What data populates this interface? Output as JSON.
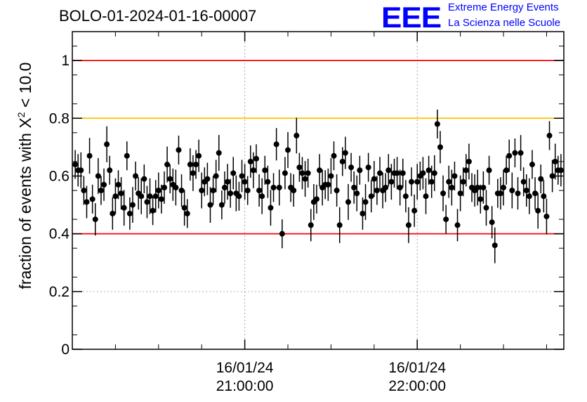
{
  "header": {
    "title": "BOLO-01-2024-01-16-00007",
    "logo": {
      "mark": "EEE",
      "line1": "Extreme Energy Events",
      "line2": "La Scienza nelle Scuole",
      "color": "#0000ff"
    }
  },
  "chart_data": {
    "type": "scatter",
    "title": "BOLO-01-2024-01-16-00007",
    "ylabel_prefix": "fraction of events with X",
    "ylabel_sup": "2",
    "ylabel_suffix": " < 10.0",
    "ylim": [
      0,
      1.1
    ],
    "yticks": [
      0,
      0.2,
      0.4,
      0.6,
      0.8,
      1
    ],
    "ytick_labels": [
      "0",
      "0.2",
      "0.4",
      "0.6",
      "0.8",
      "1"
    ],
    "xlim_minutes": [
      1140,
      1311
    ],
    "xticks": [
      {
        "minute": 1200,
        "line1": "16/01/24",
        "line2": "21:00:00"
      },
      {
        "minute": 1260,
        "line1": "16/01/24",
        "line2": "22:00:00"
      }
    ],
    "xminor_minutes": [
      1155,
      1170,
      1185,
      1215,
      1230,
      1245,
      1275,
      1290,
      1305
    ],
    "grid": "dotted at labeled ticks",
    "reference_lines": [
      {
        "value": 1.0,
        "color": "#ff0000"
      },
      {
        "value": 0.8,
        "color": "#ffbf00"
      },
      {
        "value": 0.4,
        "color": "#ff0000"
      },
      {
        "value": 0.2,
        "color": "#b0b0b0",
        "style": "dotted"
      }
    ],
    "series": [
      {
        "marker_color": "#000000",
        "step_minutes": 1,
        "start_minute": 1141,
        "error": 0.05,
        "y": [
          0.64,
          0.62,
          0.62,
          0.55,
          0.51,
          0.67,
          0.52,
          0.45,
          0.6,
          0.55,
          0.57,
          0.71,
          0.62,
          0.47,
          0.53,
          0.57,
          0.54,
          0.49,
          0.67,
          0.47,
          0.5,
          0.6,
          0.54,
          0.53,
          0.59,
          0.51,
          0.53,
          0.48,
          0.53,
          0.55,
          0.52,
          0.56,
          0.64,
          0.59,
          0.57,
          0.56,
          0.69,
          0.55,
          0.49,
          0.47,
          0.64,
          0.61,
          0.64,
          0.67,
          0.55,
          0.58,
          0.59,
          0.5,
          0.55,
          0.6,
          0.68,
          0.5,
          0.56,
          0.58,
          0.54,
          0.61,
          0.54,
          0.53,
          0.6,
          0.58,
          0.55,
          0.65,
          0.62,
          0.66,
          0.55,
          0.53,
          0.62,
          0.58,
          0.49,
          0.56,
          0.71,
          0.56,
          0.4,
          0.61,
          0.69,
          0.56,
          0.55,
          0.74,
          0.63,
          0.61,
          0.59,
          0.61,
          0.43,
          0.51,
          0.52,
          0.62,
          0.56,
          0.57,
          0.57,
          0.6,
          0.67,
          0.55,
          0.43,
          0.65,
          0.68,
          0.51,
          0.63,
          0.56,
          0.54,
          0.62,
          0.47,
          0.51,
          0.63,
          0.53,
          0.59,
          0.55,
          0.61,
          0.55,
          0.56,
          0.62,
          0.58,
          0.61,
          0.61,
          0.56,
          0.61,
          0.53,
          0.43,
          0.58,
          0.48,
          0.58,
          0.6,
          0.61,
          0.53,
          0.62,
          0.58,
          0.61,
          0.78,
          0.7,
          0.54,
          0.45,
          0.58,
          0.56,
          0.6,
          0.43,
          0.54,
          0.58,
          0.62,
          0.65,
          0.56,
          0.55,
          0.56,
          0.52,
          0.56,
          0.49,
          0.62,
          0.44,
          0.36,
          0.54,
          0.54,
          0.56,
          0.62,
          0.67,
          0.55,
          0.68,
          0.54,
          0.68,
          0.58,
          0.55,
          0.53,
          0.64,
          0.54,
          0.48,
          0.59,
          0.53,
          0.46,
          0.74,
          0.6,
          0.65,
          0.62,
          0.62
        ]
      }
    ]
  }
}
